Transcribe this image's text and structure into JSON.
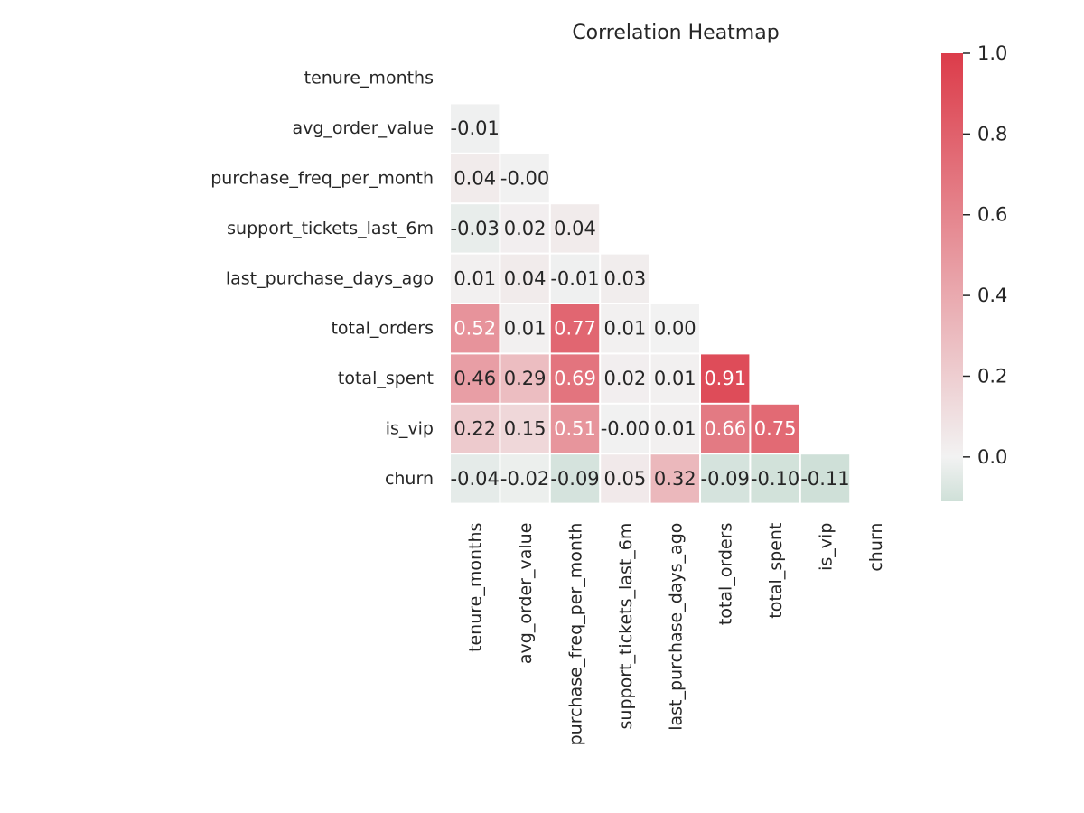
{
  "chart_data": {
    "type": "heatmap",
    "title": "Correlation Heatmap",
    "variables": [
      "tenure_months",
      "avg_order_value",
      "purchase_freq_per_month",
      "support_tickets_last_6m",
      "last_purchase_days_ago",
      "total_orders",
      "total_spent",
      "is_vip",
      "churn"
    ],
    "mask": "upper triangle including diagonal",
    "cells": [
      {
        "row": "avg_order_value",
        "col": "tenure_months",
        "value": -0.01,
        "label": "-0.01"
      },
      {
        "row": "purchase_freq_per_month",
        "col": "tenure_months",
        "value": 0.04,
        "label": "0.04"
      },
      {
        "row": "purchase_freq_per_month",
        "col": "avg_order_value",
        "value": -0.004,
        "label": "-0.00"
      },
      {
        "row": "support_tickets_last_6m",
        "col": "tenure_months",
        "value": -0.03,
        "label": "-0.03"
      },
      {
        "row": "support_tickets_last_6m",
        "col": "avg_order_value",
        "value": 0.02,
        "label": "0.02"
      },
      {
        "row": "support_tickets_last_6m",
        "col": "purchase_freq_per_month",
        "value": 0.04,
        "label": "0.04"
      },
      {
        "row": "last_purchase_days_ago",
        "col": "tenure_months",
        "value": 0.01,
        "label": "0.01"
      },
      {
        "row": "last_purchase_days_ago",
        "col": "avg_order_value",
        "value": 0.04,
        "label": "0.04"
      },
      {
        "row": "last_purchase_days_ago",
        "col": "purchase_freq_per_month",
        "value": -0.01,
        "label": "-0.01"
      },
      {
        "row": "last_purchase_days_ago",
        "col": "support_tickets_last_6m",
        "value": 0.03,
        "label": "0.03"
      },
      {
        "row": "total_orders",
        "col": "tenure_months",
        "value": 0.52,
        "label": "0.52"
      },
      {
        "row": "total_orders",
        "col": "avg_order_value",
        "value": 0.01,
        "label": "0.01"
      },
      {
        "row": "total_orders",
        "col": "purchase_freq_per_month",
        "value": 0.77,
        "label": "0.77"
      },
      {
        "row": "total_orders",
        "col": "support_tickets_last_6m",
        "value": 0.01,
        "label": "0.01"
      },
      {
        "row": "total_orders",
        "col": "last_purchase_days_ago",
        "value": 0.0,
        "label": "0.00"
      },
      {
        "row": "total_spent",
        "col": "tenure_months",
        "value": 0.46,
        "label": "0.46"
      },
      {
        "row": "total_spent",
        "col": "avg_order_value",
        "value": 0.29,
        "label": "0.29"
      },
      {
        "row": "total_spent",
        "col": "purchase_freq_per_month",
        "value": 0.69,
        "label": "0.69"
      },
      {
        "row": "total_spent",
        "col": "support_tickets_last_6m",
        "value": 0.02,
        "label": "0.02"
      },
      {
        "row": "total_spent",
        "col": "last_purchase_days_ago",
        "value": 0.01,
        "label": "0.01"
      },
      {
        "row": "total_spent",
        "col": "total_orders",
        "value": 0.91,
        "label": "0.91"
      },
      {
        "row": "is_vip",
        "col": "tenure_months",
        "value": 0.22,
        "label": "0.22"
      },
      {
        "row": "is_vip",
        "col": "avg_order_value",
        "value": 0.15,
        "label": "0.15"
      },
      {
        "row": "is_vip",
        "col": "purchase_freq_per_month",
        "value": 0.51,
        "label": "0.51"
      },
      {
        "row": "is_vip",
        "col": "support_tickets_last_6m",
        "value": -0.004,
        "label": "-0.00"
      },
      {
        "row": "is_vip",
        "col": "last_purchase_days_ago",
        "value": 0.01,
        "label": "0.01"
      },
      {
        "row": "is_vip",
        "col": "total_orders",
        "value": 0.66,
        "label": "0.66"
      },
      {
        "row": "is_vip",
        "col": "total_spent",
        "value": 0.75,
        "label": "0.75"
      },
      {
        "row": "churn",
        "col": "tenure_months",
        "value": -0.04,
        "label": "-0.04"
      },
      {
        "row": "churn",
        "col": "avg_order_value",
        "value": -0.02,
        "label": "-0.02"
      },
      {
        "row": "churn",
        "col": "purchase_freq_per_month",
        "value": -0.09,
        "label": "-0.09"
      },
      {
        "row": "churn",
        "col": "support_tickets_last_6m",
        "value": 0.05,
        "label": "0.05"
      },
      {
        "row": "churn",
        "col": "last_purchase_days_ago",
        "value": 0.32,
        "label": "0.32"
      },
      {
        "row": "churn",
        "col": "total_orders",
        "value": -0.09,
        "label": "-0.09"
      },
      {
        "row": "churn",
        "col": "total_spent",
        "value": -0.1,
        "label": "-0.10"
      },
      {
        "row": "churn",
        "col": "is_vip",
        "value": -0.11,
        "label": "-0.11"
      }
    ],
    "colorbar": {
      "range": [
        -0.11,
        1.0
      ],
      "ticks": [
        0.0,
        0.2,
        0.4,
        0.6,
        0.8,
        1.0
      ],
      "tick_labels": [
        "0.0",
        "0.2",
        "0.4",
        "0.6",
        "0.8",
        "1.0"
      ],
      "colormap": "diverging green-white-red",
      "colors": {
        "negative": "#cfe0d8",
        "center": "#f2f2f2",
        "positive": "#dc3c4a"
      }
    },
    "grid": false,
    "legend": "colorbar right"
  }
}
